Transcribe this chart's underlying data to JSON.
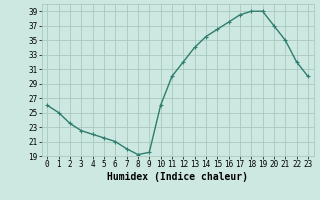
{
  "x": [
    0,
    1,
    2,
    3,
    4,
    5,
    6,
    7,
    8,
    9,
    10,
    11,
    12,
    13,
    14,
    15,
    16,
    17,
    18,
    19,
    20,
    21,
    22,
    23
  ],
  "y": [
    26,
    25,
    23.5,
    22.5,
    22,
    21.5,
    21,
    20,
    19.2,
    19.5,
    26,
    30,
    32,
    34,
    35.5,
    36.5,
    37.5,
    38.5,
    39,
    39,
    37,
    35,
    32,
    30
  ],
  "line_color": "#2e7d6e",
  "marker": "+",
  "bg_color": "#cce8e0",
  "grid_color": "#a8c8c0",
  "xlabel": "Humidex (Indice chaleur)",
  "xlim": [
    -0.5,
    23.5
  ],
  "ylim": [
    19,
    40
  ],
  "yticks": [
    19,
    21,
    23,
    25,
    27,
    29,
    31,
    33,
    35,
    37,
    39
  ],
  "xticks": [
    0,
    1,
    2,
    3,
    4,
    5,
    6,
    7,
    8,
    9,
    10,
    11,
    12,
    13,
    14,
    15,
    16,
    17,
    18,
    19,
    20,
    21,
    22,
    23
  ],
  "tick_label_fontsize": 5.5,
  "xlabel_fontsize": 7,
  "line_width": 1.0,
  "marker_size": 3,
  "marker_edge_width": 0.8
}
